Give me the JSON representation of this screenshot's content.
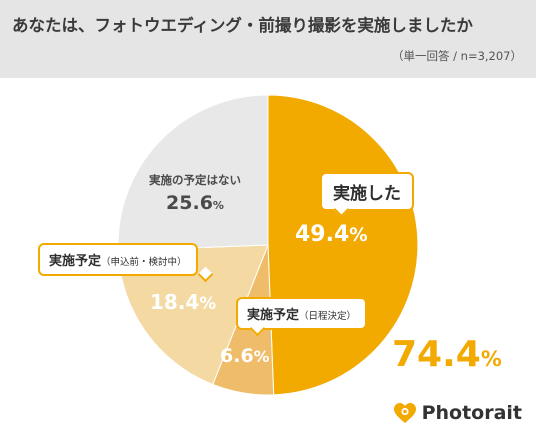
{
  "header": {
    "title": "あなたは、フォトウエディング・前撮り撮影を実施しましたか",
    "subtitle": "（単一回答 / n=3,207）"
  },
  "chart_data": {
    "type": "pie",
    "title": "あなたは、フォトウエディング・前撮り撮影を実施しましたか",
    "subtitle": "（単一回答 / n=3,207）",
    "unit": "%",
    "start_angle_deg": 0,
    "direction": "clockwise",
    "slices": [
      {
        "name": "実施した",
        "name_suffix": "",
        "value": 49.4,
        "value_text": "49.4",
        "color": "#f2a900"
      },
      {
        "name": "実施予定",
        "name_suffix": "（日程決定）",
        "value": 6.6,
        "value_text": "6.6",
        "color": "#efbd69"
      },
      {
        "name": "実施予定",
        "name_suffix": "（申込前・検討中）",
        "value": 18.4,
        "value_text": "18.4",
        "color": "#f4d9a3"
      },
      {
        "name": "実施の予定はない",
        "name_suffix": "",
        "value": 25.6,
        "value_text": "25.6",
        "color": "#e8e8e8"
      }
    ],
    "total_annotation": {
      "value": 74.4,
      "value_text": "74.4",
      "color": "#f2a900"
    }
  },
  "brand": {
    "name": "Photorait",
    "color": "#f2a900"
  }
}
